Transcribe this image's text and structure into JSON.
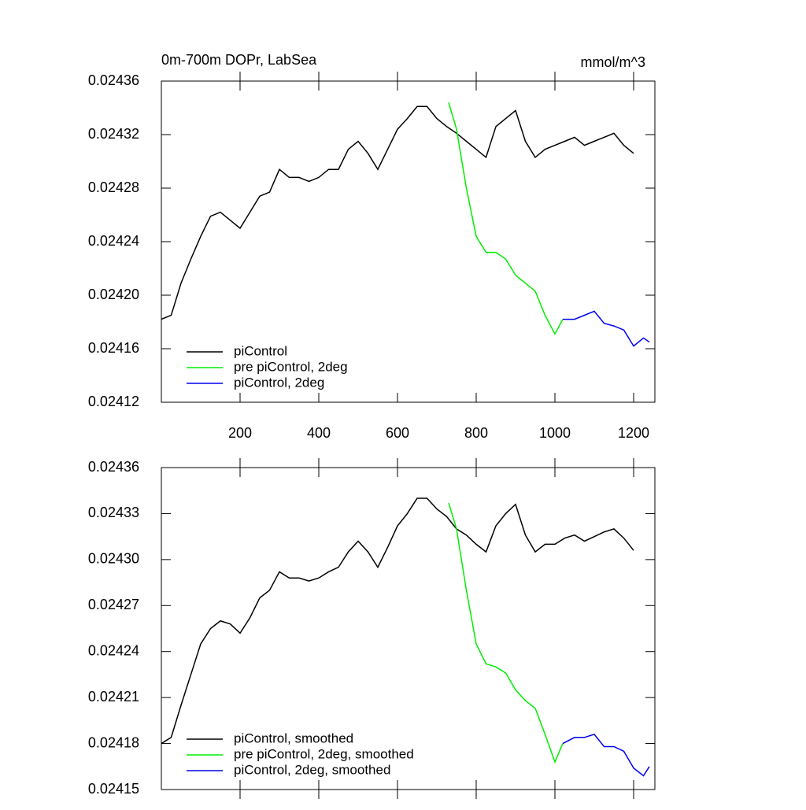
{
  "chart_data": [
    {
      "type": "line",
      "title": "0m-700m DOPr, LabSea",
      "units": "mmol/m^3",
      "xlim": [
        0,
        1254
      ],
      "ylim": [
        0.02412,
        0.02436
      ],
      "xticks": [
        200,
        400,
        600,
        800,
        1000,
        1200
      ],
      "yticks": [
        0.02412,
        0.02416,
        {
          "value": 0.0242,
          "label": "0.02420"
        },
        0.02424,
        0.02428,
        0.02432,
        0.02436
      ],
      "legend": "lower left",
      "series": [
        {
          "name": "piControl",
          "color": "#000000",
          "x": [
            0,
            25,
            50,
            75,
            100,
            125,
            150,
            175,
            200,
            225,
            250,
            275,
            300,
            325,
            350,
            375,
            400,
            425,
            450,
            475,
            500,
            525,
            550,
            575,
            600,
            625,
            650,
            675,
            700,
            725,
            750,
            775,
            800,
            825,
            850,
            875,
            900,
            925,
            950,
            975,
            1000,
            1025,
            1050,
            1075,
            1100,
            1125,
            1150,
            1175,
            1200
          ],
          "values": [
            0.024182,
            0.024185,
            0.024209,
            0.024227,
            0.024244,
            0.024259,
            0.024262,
            0.024256,
            0.02425,
            0.024262,
            0.024274,
            0.024277,
            0.024294,
            0.024288,
            0.024288,
            0.024285,
            0.024288,
            0.024294,
            0.024294,
            0.024309,
            0.024315,
            0.024306,
            0.024294,
            0.024309,
            0.024324,
            0.024332,
            0.024341,
            0.024341,
            0.024332,
            0.024326,
            0.024321,
            0.024315,
            0.024309,
            0.024303,
            0.024326,
            0.024332,
            0.024338,
            0.024315,
            0.024303,
            0.024309,
            0.024312,
            0.024315,
            0.024318,
            0.024312,
            0.024315,
            0.024318,
            0.024321,
            0.024312,
            0.024306
          ]
        },
        {
          "name": "pre piControl, 2deg",
          "color": "#00ee00",
          "x": [
            730,
            750,
            775,
            800,
            825,
            850,
            875,
            900,
            925,
            950,
            975,
            1000,
            1020
          ],
          "values": [
            0.024344,
            0.024324,
            0.02428,
            0.024244,
            0.024232,
            0.024232,
            0.024227,
            0.024215,
            0.024209,
            0.024203,
            0.024185,
            0.024171,
            0.024182
          ]
        },
        {
          "name": "piControl, 2deg",
          "color": "#0000ee",
          "x": [
            1020,
            1050,
            1075,
            1100,
            1125,
            1150,
            1175,
            1200,
            1225,
            1240
          ],
          "values": [
            0.024182,
            0.024182,
            0.024185,
            0.024188,
            0.024179,
            0.024177,
            0.024174,
            0.024162,
            0.024168,
            0.024165
          ]
        }
      ]
    },
    {
      "type": "line",
      "xlim": [
        0,
        1254
      ],
      "ylim": [
        0.02415,
        0.02436
      ],
      "xticks": [
        200,
        400,
        600,
        800,
        1000,
        1200
      ],
      "yticks": [
        0.02415,
        0.02418,
        0.02421,
        0.02424,
        0.02427,
        {
          "value": 0.0243,
          "label": "0.02430"
        },
        0.02433,
        0.02436
      ],
      "legend": "lower left",
      "series": [
        {
          "name": "piControl, smoothed",
          "color": "#000000",
          "x": [
            0,
            25,
            50,
            75,
            100,
            125,
            150,
            175,
            200,
            225,
            250,
            275,
            300,
            325,
            350,
            375,
            400,
            425,
            450,
            475,
            500,
            525,
            550,
            575,
            600,
            625,
            650,
            675,
            700,
            725,
            750,
            775,
            800,
            825,
            850,
            875,
            900,
            925,
            950,
            975,
            1000,
            1025,
            1050,
            1075,
            1100,
            1125,
            1150,
            1175,
            1200
          ],
          "values": [
            0.02418,
            0.024184,
            0.024205,
            0.024225,
            0.024245,
            0.024255,
            0.02426,
            0.024258,
            0.024252,
            0.024262,
            0.024275,
            0.02428,
            0.024292,
            0.024288,
            0.024288,
            0.024286,
            0.024288,
            0.024292,
            0.024295,
            0.024305,
            0.024312,
            0.024305,
            0.024295,
            0.024308,
            0.024322,
            0.02433,
            0.02434,
            0.02434,
            0.024333,
            0.024328,
            0.02432,
            0.024316,
            0.02431,
            0.024305,
            0.024322,
            0.02433,
            0.024336,
            0.024316,
            0.024305,
            0.02431,
            0.02431,
            0.024314,
            0.024316,
            0.024312,
            0.024315,
            0.024318,
            0.02432,
            0.024314,
            0.024306
          ]
        },
        {
          "name": "pre piControl, 2deg, smoothed",
          "color": "#00ee00",
          "x": [
            730,
            750,
            775,
            800,
            825,
            850,
            875,
            900,
            925,
            950,
            975,
            1000,
            1020
          ],
          "values": [
            0.024337,
            0.02432,
            0.02428,
            0.024245,
            0.024232,
            0.02423,
            0.024226,
            0.024215,
            0.024208,
            0.024203,
            0.024186,
            0.024168,
            0.02418
          ]
        },
        {
          "name": "piControl, 2deg, smoothed",
          "color": "#0000ee",
          "x": [
            1020,
            1050,
            1075,
            1100,
            1125,
            1150,
            1175,
            1200,
            1225,
            1240
          ],
          "values": [
            0.02418,
            0.024184,
            0.024184,
            0.024186,
            0.024178,
            0.024178,
            0.024175,
            0.024164,
            0.024159,
            0.024165
          ]
        }
      ]
    }
  ]
}
